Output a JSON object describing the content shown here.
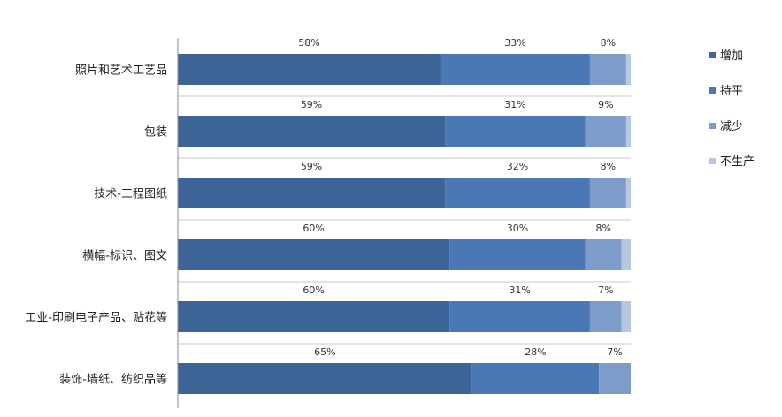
{
  "chart_data": {
    "type": "bar",
    "orientation": "horizontal",
    "stacked": true,
    "categories": [
      "照片和艺术工艺品",
      "包装",
      "技术-工程图纸",
      "横幅-标识、图文",
      "工业-印刷电子产品、贴花等",
      "装饰-墙纸、纺织品等"
    ],
    "series": [
      {
        "name": "增加",
        "color": "#3c6497",
        "values": [
          58,
          59,
          59,
          60,
          60,
          65
        ],
        "labels": [
          "58%",
          "59%",
          "59%",
          "60%",
          "60%",
          "65%"
        ]
      },
      {
        "name": "持平",
        "color": "#4a78b4",
        "values": [
          33,
          31,
          32,
          30,
          31,
          28
        ],
        "labels": [
          "33%",
          "31%",
          "32%",
          "30%",
          "31%",
          "28%"
        ]
      },
      {
        "name": "减少",
        "color": "#7e9cc9",
        "values": [
          8,
          9,
          8,
          8,
          7,
          7
        ],
        "labels": [
          "8%",
          "9%",
          "8%",
          "8%",
          "7%",
          "7%"
        ]
      },
      {
        "name": "不生产",
        "color": "#b7c7e0",
        "values": [
          1,
          1,
          1,
          2,
          2,
          0
        ],
        "labels": [
          "",
          "",
          "",
          "",
          "",
          ""
        ]
      }
    ],
    "xlim": [
      0,
      100
    ],
    "grid": false,
    "legend": "right",
    "separator_color": "#c8c8c8",
    "axis_color": "#888888"
  }
}
